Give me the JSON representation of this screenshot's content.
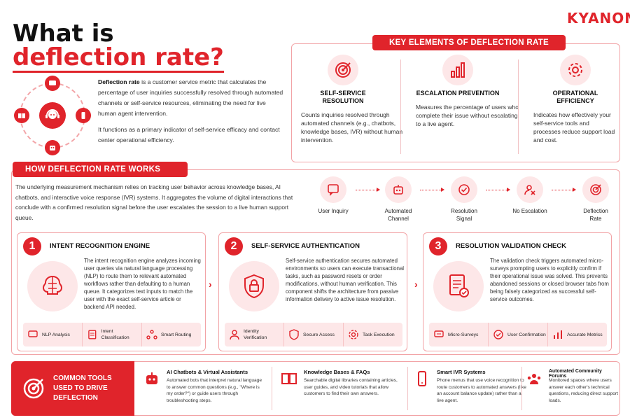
{
  "brand": "KYANON",
  "title": {
    "line1": "What is",
    "line2": "deflection rate?"
  },
  "intro": {
    "term": "Deflection rate",
    "p1_rest": " is a customer service metric that calculates the percentage of user inquiries successfully resolved through automated channels or self-service resources, eliminating the need for live human agent intervention.",
    "p2": "It functions as a primary indicator of self-service efficacy and contact center operational efficiency."
  },
  "key_elements": {
    "heading": "KEY ELEMENTS OF DEFLECTION RATE",
    "items": [
      {
        "icon": "target-icon",
        "title": "SELF-SERVICE RESOLUTION",
        "desc": "Counts inquiries resolved through automated channels (e.g., chatbots, knowledge bases, IVR) without human intervention."
      },
      {
        "icon": "bar-chart-icon",
        "title": "ESCALATION PREVENTION",
        "desc": "Measures the percentage of users who complete their issue without escalating to a live agent."
      },
      {
        "icon": "gear-icon",
        "title": "OPERATIONAL EFFICIENCY",
        "desc": "Indicates how effectively your self-service tools and processes reduce support load and cost."
      }
    ]
  },
  "how": {
    "heading": "HOW DEFLECTION RATE WORKS",
    "text": "The underlying measurement mechanism relies on tracking user behavior across knowledge bases, AI chatbots, and interactive voice response (IVR) systems. It aggregates the volume of digital interactions that conclude with a confirmed resolution signal before the user escalates the session to a live human support queue.",
    "flow": [
      {
        "icon": "chat-icon",
        "label": "User Inquiry"
      },
      {
        "icon": "robot-icon",
        "label": "Automated Channel"
      },
      {
        "icon": "check-circle-icon",
        "label": "Resolution Signal"
      },
      {
        "icon": "no-escalation-icon",
        "label": "No Escalation"
      },
      {
        "icon": "target-icon",
        "label": "Deflection Rate"
      }
    ],
    "steps": [
      {
        "num": "1",
        "title": "INTENT RECOGNITION ENGINE",
        "icon": "brain-icon",
        "desc": "The intent recognition engine analyzes incoming user queries via natural language processing (NLP) to route them to relevant automated workflows rather than defaulting to a human queue. It categorizes text inputs to match the user with the exact self-service article or backend API needed.",
        "chips": [
          {
            "icon": "chat-icon",
            "label": "NLP Analysis"
          },
          {
            "icon": "list-icon",
            "label": "Intent Classification"
          },
          {
            "icon": "network-icon",
            "label": "Smart Routing"
          }
        ]
      },
      {
        "num": "2",
        "title": "SELF-SERVICE AUTHENTICATION",
        "icon": "shield-lock-icon",
        "desc": "Self-service authentication secures automated environments so users can execute transactional tasks, such as password resets or order modifications, without human verification. This component shifts the architecture from passive information delivery to active issue resolution.",
        "chips": [
          {
            "icon": "user-icon",
            "label": "Identity Verification"
          },
          {
            "icon": "shield-icon",
            "label": "Secure Access"
          },
          {
            "icon": "gear-icon",
            "label": "Task Execution"
          }
        ]
      },
      {
        "num": "3",
        "title": "RESOLUTION VALIDATION CHECK",
        "icon": "document-check-icon",
        "desc": "The validation check triggers automated micro-surveys prompting users to explicitly confirm if their operational issue was solved. This prevents abandoned sessions or closed browser tabs from being falsely categorized as successful self-service outcomes.",
        "chips": [
          {
            "icon": "survey-icon",
            "label": "Micro-Surveys"
          },
          {
            "icon": "check-circle-icon",
            "label": "User Confirmation"
          },
          {
            "icon": "bar-chart-icon",
            "label": "Accurate Metrics"
          }
        ]
      }
    ]
  },
  "tools": {
    "heading": "COMMON TOOLS USED TO DRIVE DEFLECTION",
    "items": [
      {
        "icon": "robot-icon",
        "title": "AI Chatbots & Virtual Assistants",
        "desc": "Automated bots that interpret natural language to answer common questions (e.g., \"Where is my order?\") or guide users through troubleshooting steps."
      },
      {
        "icon": "book-icon",
        "title": "Knowledge Bases & FAQs",
        "desc": "Searchable digital libraries containing articles, user guides, and video tutorials that allow customers to find their own answers."
      },
      {
        "icon": "phone-icon",
        "title": "Smart IVR Systems",
        "desc": "Phone menus that use voice recognition to route customers to automated answers (like an account balance update) rather than a live agent."
      },
      {
        "icon": "community-icon",
        "title": "Automated Community Forums",
        "desc": "Monitored spaces where users answer each other's technical questions, reducing direct support loads."
      }
    ]
  },
  "colors": {
    "accent": "#e0242b",
    "tint": "#fde7e8",
    "border": "#f2a3a6"
  }
}
